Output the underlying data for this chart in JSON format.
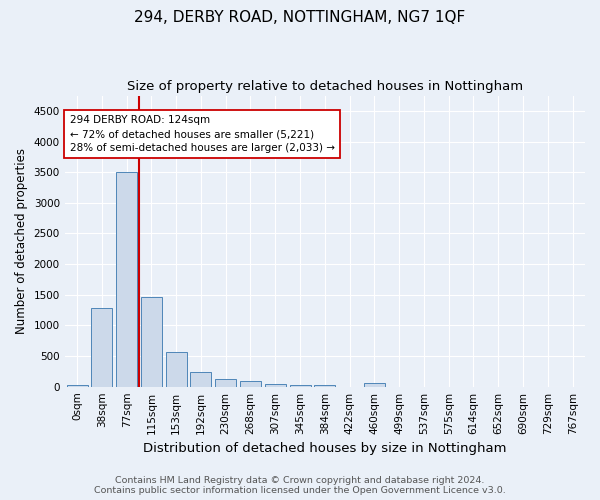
{
  "title": "294, DERBY ROAD, NOTTINGHAM, NG7 1QF",
  "subtitle": "Size of property relative to detached houses in Nottingham",
  "xlabel": "Distribution of detached houses by size in Nottingham",
  "ylabel": "Number of detached properties",
  "bin_labels": [
    "0sqm",
    "38sqm",
    "77sqm",
    "115sqm",
    "153sqm",
    "192sqm",
    "230sqm",
    "268sqm",
    "307sqm",
    "345sqm",
    "384sqm",
    "422sqm",
    "460sqm",
    "499sqm",
    "537sqm",
    "575sqm",
    "614sqm",
    "652sqm",
    "690sqm",
    "729sqm",
    "767sqm"
  ],
  "bar_heights": [
    30,
    1280,
    3500,
    1460,
    570,
    240,
    130,
    85,
    40,
    20,
    35,
    0,
    55,
    0,
    0,
    0,
    0,
    0,
    0,
    0,
    0
  ],
  "bar_color": "#ccd9ea",
  "bar_edge_color": "#4e86b8",
  "vline_color": "#cc0000",
  "annotation_box_text": "294 DERBY ROAD: 124sqm\n← 72% of detached houses are smaller (5,221)\n28% of semi-detached houses are larger (2,033) →",
  "annotation_box_facecolor": "white",
  "annotation_box_edgecolor": "#cc0000",
  "ylim": [
    0,
    4750
  ],
  "yticks": [
    0,
    500,
    1000,
    1500,
    2000,
    2500,
    3000,
    3500,
    4000,
    4500
  ],
  "background_color": "#eaf0f8",
  "grid_color": "white",
  "footer_line1": "Contains HM Land Registry data © Crown copyright and database right 2024.",
  "footer_line2": "Contains public sector information licensed under the Open Government Licence v3.0.",
  "title_fontsize": 11,
  "subtitle_fontsize": 9.5,
  "xlabel_fontsize": 9.5,
  "ylabel_fontsize": 8.5,
  "tick_fontsize": 7.5,
  "footer_fontsize": 6.8,
  "bar_width": 0.85
}
